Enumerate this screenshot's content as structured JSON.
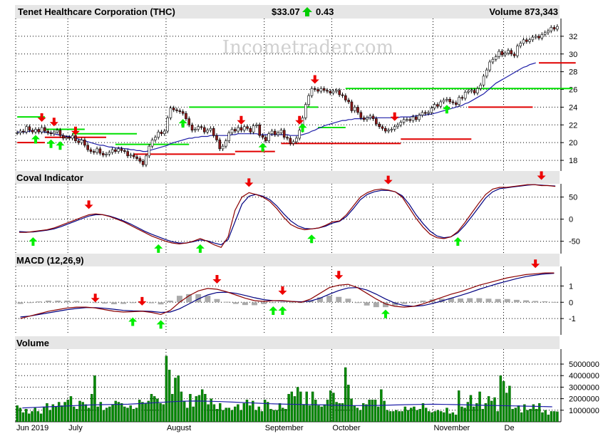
{
  "header": {
    "title": "Tenet Healthcare Corporation (THC)",
    "price": "$33.07",
    "change": "0.43",
    "volume_label": "Volume 873,343"
  },
  "watermark": "Incometrader.com",
  "colors": {
    "up_candle": "#ffffff",
    "down_candle": "#8b1a1a",
    "sma": "#1f1fa8",
    "resistance": "#00e000",
    "support": "#e00000",
    "buy_arrow": "#00ee00",
    "sell_arrow": "#ee0000",
    "volume_bar": "#008800",
    "histogram": "#aaaaaa",
    "fast_line": "#8b0000",
    "slow_line": "#000080"
  },
  "chart_data": [
    {
      "type": "candlestick",
      "panel": "price",
      "title": "Tenet Healthcare Corporation (THC)",
      "ylim": [
        16.8,
        34
      ],
      "yticks": [
        18,
        20,
        22,
        24,
        26,
        28,
        30,
        32
      ],
      "x_labels": [
        "Jun 2019",
        "July",
        "August",
        "September",
        "October",
        "November",
        "De"
      ],
      "month_start_index": [
        0,
        17,
        49,
        81,
        103,
        136,
        159
      ],
      "close": [
        21.1,
        21.3,
        21.2,
        21.8,
        21.4,
        21.2,
        21.5,
        21.2,
        21.7,
        21.3,
        21.1,
        21.0,
        21.2,
        21.4,
        20.8,
        20.5,
        20.6,
        20.5,
        20.8,
        20.2,
        20.0,
        20.3,
        19.7,
        19.2,
        19.0,
        18.9,
        19.3,
        18.8,
        18.6,
        18.7,
        18.9,
        19.2,
        19.0,
        19.3,
        19.1,
        19.0,
        18.5,
        18.6,
        18.4,
        18.2,
        17.9,
        17.5,
        18.5,
        19.6,
        20.3,
        20.6,
        21.2,
        21.0,
        21.3,
        22.8,
        23.9,
        23.7,
        23.6,
        23.5,
        23.3,
        22.7,
        22.0,
        21.4,
        21.5,
        21.8,
        21.7,
        21.2,
        21.4,
        21.6,
        20.8,
        20.3,
        19.3,
        19.6,
        20.2,
        21.1,
        21.5,
        21.3,
        21.7,
        21.4,
        21.8,
        21.6,
        21.2,
        21.9,
        22.0,
        20.8,
        20.6,
        20.2,
        21.0,
        21.3,
        20.9,
        21.1,
        21.4,
        20.6,
        20.5,
        19.9,
        20.1,
        20.5,
        21.4,
        22.8,
        24.3,
        25.3,
        26.1,
        26.0,
        25.8,
        26.1,
        25.9,
        25.8,
        25.6,
        25.8,
        25.9,
        25.4,
        25.3,
        24.8,
        24.6,
        23.6,
        24.0,
        23.4,
        22.8,
        22.6,
        22.8,
        23.0,
        22.7,
        22.1,
        21.8,
        21.6,
        21.3,
        21.4,
        21.5,
        21.8,
        22.0,
        22.3,
        22.6,
        22.6,
        22.5,
        22.9,
        22.6,
        23.1,
        23.4,
        23.3,
        23.4,
        23.9,
        24.3,
        24.1,
        24.6,
        24.8,
        24.9,
        24.6,
        24.5,
        24.3,
        25.1,
        25.0,
        25.7,
        25.8,
        25.9,
        25.6,
        26.1,
        26.5,
        27.5,
        28.2,
        29.1,
        29.4,
        29.7,
        30.3,
        29.9,
        30.1,
        30.4,
        30.0,
        29.8,
        30.9,
        31.2,
        31.6,
        31.4,
        31.6,
        31.9,
        32.0,
        31.8,
        32.2,
        32.4,
        32.6,
        33.0,
        32.8,
        33.1
      ],
      "sma": [
        21.2,
        21.2,
        21.2,
        21.2,
        21.3,
        21.3,
        21.4,
        21.3,
        21.2,
        21.2,
        21.1,
        21.1,
        21.0,
        20.9,
        20.9,
        20.8,
        20.7,
        20.7,
        20.6,
        20.5,
        20.4,
        20.3,
        20.2,
        20.1,
        20.0,
        19.9,
        19.8,
        19.7,
        19.7,
        19.6,
        19.5,
        19.5,
        19.4,
        19.4,
        19.4,
        19.3,
        19.3,
        19.2,
        19.2,
        19.1,
        19.1,
        19.0,
        19.0,
        19.1,
        19.2,
        19.3,
        19.4,
        19.5,
        19.6,
        19.7,
        19.9,
        20.0,
        20.1,
        20.2,
        20.3,
        20.4,
        20.5,
        20.5,
        20.6,
        20.6,
        20.7,
        20.7,
        20.7,
        20.8,
        20.8,
        20.8,
        20.8,
        20.8,
        20.8,
        20.8,
        20.9,
        20.9,
        21.0,
        21.0,
        21.0,
        21.0,
        21.0,
        21.0,
        21.0,
        20.9,
        20.9,
        20.9,
        20.9,
        20.9,
        20.9,
        20.9,
        20.9,
        20.9,
        20.9,
        20.8,
        20.8,
        20.8,
        20.8,
        20.9,
        21.0,
        21.1,
        21.3,
        21.4,
        21.6,
        21.7,
        21.9,
        22.0,
        22.1,
        22.2,
        22.3,
        22.4,
        22.5,
        22.5,
        22.6,
        22.6,
        22.7,
        22.7,
        22.7,
        22.7,
        22.8,
        22.8,
        22.8,
        22.8,
        22.8,
        22.8,
        22.8,
        22.8,
        22.8,
        22.8,
        22.8,
        22.9,
        22.9,
        22.9,
        22.9,
        23.0,
        23.0,
        23.1,
        23.1,
        23.1,
        23.2,
        23.2,
        23.3,
        23.4,
        23.5,
        23.6,
        23.7,
        23.8,
        23.9,
        24.0,
        24.1,
        24.2,
        24.4,
        24.5,
        24.7,
        24.9,
        25.1,
        25.3,
        25.5,
        25.8,
        26.1,
        26.4,
        26.7,
        26.9,
        27.1,
        27.3,
        27.5,
        27.7,
        27.9,
        28.1,
        28.3,
        28.5,
        28.6,
        28.8,
        28.9,
        29.0
      ],
      "resistance_levels": [
        {
          "value": 22.9,
          "from": 0,
          "to": 9
        },
        {
          "value": 21.5,
          "from": 9,
          "to": 22
        },
        {
          "value": 21.0,
          "from": 18,
          "to": 39
        },
        {
          "value": 19.8,
          "from": 32,
          "to": 56
        },
        {
          "value": 24.0,
          "from": 56,
          "to": 98
        },
        {
          "value": 21.7,
          "from": 98,
          "to": 107
        },
        {
          "value": 26.1,
          "from": 107,
          "to": 181
        }
      ],
      "support_levels": [
        {
          "value": 20.0,
          "from": 0,
          "to": 9
        },
        {
          "value": 20.6,
          "from": 9,
          "to": 29
        },
        {
          "value": 18.7,
          "from": 38,
          "to": 71
        },
        {
          "value": 19.0,
          "from": 71,
          "to": 84
        },
        {
          "value": 19.9,
          "from": 86,
          "to": 125
        },
        {
          "value": 20.4,
          "from": 125,
          "to": 148
        },
        {
          "value": 24.0,
          "from": 147,
          "to": 168
        },
        {
          "value": 29.0,
          "from": 170,
          "to": 182
        }
      ],
      "buy_signals": [
        6,
        11,
        14,
        54,
        80,
        93,
        140
      ],
      "sell_signals": [
        8,
        12,
        19,
        73,
        92,
        97,
        123
      ]
    },
    {
      "type": "line",
      "panel": "coval",
      "title": "Coval Indicator",
      "ylim": [
        -78,
        80
      ],
      "yticks": [
        50,
        0,
        -50
      ],
      "series": [
        {
          "values": [
            -30,
            -30,
            -28,
            -26,
            -24,
            -20,
            -14,
            -8,
            -2,
            4,
            10,
            12,
            10,
            6,
            0,
            -6,
            -14,
            -22,
            -30,
            -38,
            -44,
            -50,
            -54,
            -56,
            -54,
            -50,
            -44,
            -50,
            -58,
            -64,
            -40,
            20,
            50,
            60,
            56,
            50,
            40,
            24,
            4,
            -12,
            -20,
            -24,
            -22,
            -20,
            -14,
            -6,
            -4,
            10,
            30,
            50,
            60,
            66,
            68,
            66,
            62,
            50,
            26,
            2,
            -18,
            -34,
            -42,
            -44,
            -40,
            -28,
            -8,
            14,
            36,
            56,
            68,
            72,
            72,
            74,
            76,
            78,
            78,
            76,
            76,
            74
          ]
        },
        {
          "values": [
            -28,
            -29,
            -29,
            -27,
            -25,
            -22,
            -17,
            -11,
            -5,
            1,
            7,
            10,
            10,
            7,
            2,
            -4,
            -11,
            -19,
            -27,
            -34,
            -40,
            -46,
            -51,
            -54,
            -54,
            -51,
            -47,
            -49,
            -54,
            -58,
            -46,
            -6,
            34,
            52,
            56,
            52,
            44,
            30,
            12,
            -4,
            -15,
            -21,
            -22,
            -20,
            -16,
            -9,
            -5,
            6,
            24,
            44,
            56,
            62,
            65,
            65,
            62,
            53,
            34,
            10,
            -10,
            -27,
            -38,
            -42,
            -40,
            -31,
            -14,
            6,
            27,
            48,
            62,
            69,
            71,
            73,
            75,
            77,
            78,
            77,
            76,
            75
          ]
        }
      ],
      "buy_signals": [
        2,
        20,
        26,
        42,
        63
      ],
      "sell_signals": [
        10,
        33,
        53,
        75
      ]
    },
    {
      "type": "line",
      "panel": "macd",
      "title": "MACD (12,26,9)",
      "ylim": [
        -2.0,
        2.2
      ],
      "yticks": [
        1,
        0,
        -1
      ],
      "series": [
        {
          "values": [
            -1.0,
            -0.85,
            -0.7,
            -0.55,
            -0.45,
            -0.35,
            -0.3,
            -0.3,
            -0.35,
            -0.45,
            -0.55,
            -0.6,
            -0.58,
            -0.55,
            -0.62,
            -0.75,
            -0.5,
            0.0,
            0.4,
            0.7,
            0.85,
            0.8,
            0.65,
            0.45,
            0.25,
            0.1,
            0.05,
            0.1,
            0.1,
            0.05,
            0.0,
            0.2,
            0.55,
            0.9,
            1.05,
            1.1,
            0.9,
            0.55,
            0.2,
            -0.1,
            -0.25,
            -0.3,
            -0.25,
            -0.1,
            0.1,
            0.3,
            0.5,
            0.65,
            0.85,
            1.05,
            1.2,
            1.35,
            1.5,
            1.6,
            1.7,
            1.75,
            1.8,
            1.8
          ]
        },
        {
          "values": [
            -0.9,
            -0.85,
            -0.75,
            -0.65,
            -0.55,
            -0.45,
            -0.38,
            -0.33,
            -0.33,
            -0.37,
            -0.43,
            -0.5,
            -0.53,
            -0.54,
            -0.56,
            -0.62,
            -0.6,
            -0.4,
            -0.1,
            0.2,
            0.45,
            0.6,
            0.62,
            0.55,
            0.42,
            0.28,
            0.16,
            0.1,
            0.08,
            0.05,
            0.03,
            0.08,
            0.25,
            0.5,
            0.72,
            0.88,
            0.9,
            0.75,
            0.5,
            0.2,
            -0.05,
            -0.2,
            -0.25,
            -0.2,
            -0.08,
            0.08,
            0.25,
            0.42,
            0.6,
            0.8,
            0.98,
            1.15,
            1.3,
            1.45,
            1.58,
            1.67,
            1.74,
            1.78
          ]
        }
      ],
      "histogram": [
        -0.1,
        0.0,
        0.05,
        0.1,
        0.1,
        0.1,
        0.08,
        0.03,
        -0.02,
        -0.08,
        -0.12,
        -0.1,
        -0.05,
        -0.01,
        -0.06,
        -0.13,
        0.1,
        0.4,
        0.5,
        0.5,
        0.4,
        0.2,
        0.03,
        -0.1,
        -0.17,
        -0.18,
        -0.11,
        0.0,
        0.02,
        0.0,
        -0.03,
        0.12,
        0.3,
        0.4,
        0.33,
        0.22,
        0.0,
        -0.2,
        -0.3,
        -0.3,
        -0.2,
        -0.1,
        0.0,
        0.1,
        0.18,
        0.22,
        0.25,
        0.23,
        0.25,
        0.25,
        0.22,
        0.2,
        0.2,
        0.15,
        0.12,
        0.08,
        0.06,
        0.02
      ],
      "buy_signals": [
        12,
        15,
        27,
        28,
        39
      ],
      "sell_signals": [
        8,
        13,
        21,
        28,
        34,
        55
      ]
    },
    {
      "type": "bar",
      "panel": "volume",
      "title": "Volume",
      "ylim": [
        0,
        6300000
      ],
      "yticks": [
        1000000,
        2000000,
        3000000,
        4000000,
        5000000
      ],
      "ytick_labels": [
        "1000000",
        "2000000",
        "3000000",
        "4000000",
        "5000000"
      ],
      "values": [
        1400000,
        1200000,
        800000,
        1100000,
        700000,
        900000,
        1200000,
        900000,
        700000,
        1300000,
        1600000,
        1000000,
        1500000,
        1300000,
        1700000,
        1400000,
        1700000,
        1900000,
        2200000,
        1300000,
        1100000,
        1800000,
        1700000,
        1500000,
        1200000,
        2400000,
        4000000,
        1300000,
        1700000,
        1000000,
        1200000,
        1300000,
        1500000,
        1800000,
        1700000,
        1600000,
        1300000,
        1200000,
        1400000,
        1100000,
        1200000,
        1900000,
        1700000,
        1600000,
        1800000,
        2400000,
        2200000,
        2000000,
        1600000,
        1500000,
        5700000,
        4500000,
        2400000,
        3800000,
        4000000,
        2600000,
        1800000,
        1200000,
        2400000,
        1300000,
        2200000,
        2300000,
        2800000,
        2400000,
        1500000,
        2000000,
        1500000,
        1100000,
        1600000,
        1000000,
        1200000,
        1200000,
        1000000,
        1300000,
        1500000,
        1000000,
        1600000,
        1900000,
        1400000,
        1800000,
        1000000,
        1300000,
        900000,
        1900000,
        1700000,
        1100000,
        1000000,
        1000000,
        1600000,
        1200000,
        1100000,
        2400000,
        2600000,
        2200000,
        3000000,
        2600000,
        1500000,
        2600000,
        1400000,
        2600000,
        1900000,
        1400000,
        1300000,
        1500000,
        1900000,
        2700000,
        2500000,
        1700000,
        1600000,
        1600000,
        4700000,
        3200000,
        2000000,
        1400000,
        1200000,
        1000000,
        1600000,
        1500000,
        1900000,
        1900000,
        1900000,
        1300000,
        2800000,
        1800000,
        1000000,
        900000,
        900000,
        1000000,
        900000,
        900000,
        1300000,
        1000000,
        1200000,
        1300000,
        1000000,
        1100000,
        1600000,
        1200000,
        900000,
        800000,
        900000,
        1000000,
        900000,
        800000,
        1200000,
        700000,
        800000,
        600000,
        2700000,
        1300000,
        1200000,
        1700000,
        2300000,
        1300000,
        1600000,
        2600000,
        1100000,
        1600000,
        2200000,
        1800000,
        2100000,
        900000,
        4000000,
        3500000,
        2500000,
        3100000,
        1100000,
        1200000,
        1400000,
        800000,
        1500000,
        1000000,
        1100000,
        1500000,
        1100000,
        1600000,
        800000,
        1000000,
        600000,
        900000,
        900000,
        873343
      ],
      "avg_line": [
        1200000,
        1250000,
        1300000,
        1350000,
        1400000,
        1450000,
        1480000,
        1500000,
        1520000,
        1580000,
        1650000,
        1720000,
        1780000,
        1800000,
        1780000,
        1750000,
        1700000,
        1650000,
        1600000,
        1550000,
        1520000,
        1500000,
        1480000,
        1450000,
        1420000,
        1400000,
        1400000,
        1420000,
        1450000,
        1480000,
        1500000,
        1520000,
        1500000,
        1480000,
        1450000,
        1420000,
        1400000,
        1380000,
        1350000,
        1330000,
        1300000
      ]
    }
  ]
}
